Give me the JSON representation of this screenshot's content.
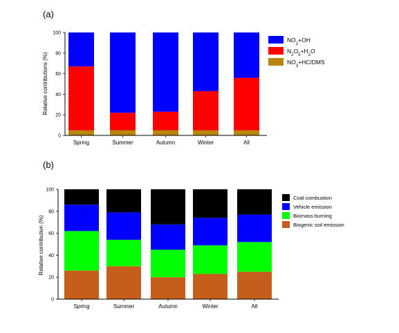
{
  "chart_data": [
    {
      "panel_label": "(a)",
      "type": "bar",
      "stacked": true,
      "categories": [
        "Spring",
        "Summer",
        "Autumn",
        "Winter",
        "All"
      ],
      "ylabel": "Relative contributions (%)",
      "xlabel": "",
      "ylim": [
        0,
        100
      ],
      "yticks": [
        0,
        20,
        40,
        60,
        80,
        100
      ],
      "legend_position": "right",
      "series": [
        {
          "name": "NO3+HC/DMS",
          "display": {
            "base": "NO",
            "sub": "3",
            "rest": "+HC/DMS"
          },
          "color": "#b8860b",
          "values": [
            5,
            5,
            5,
            5,
            5
          ]
        },
        {
          "name": "N2O5+H2O",
          "display": {
            "base": "N",
            "sub": "2",
            "base2": "O",
            "sub2": "5",
            "rest": "+H",
            "sub3": "2",
            "rest2": "O"
          },
          "color": "#ff0000",
          "values": [
            62,
            17,
            18,
            38,
            51
          ]
        },
        {
          "name": "NO2+OH",
          "display": {
            "base": "NO",
            "sub": "2",
            "rest": "+OH"
          },
          "color": "#0000ff",
          "values": [
            33,
            78,
            77,
            57,
            44
          ]
        }
      ]
    },
    {
      "panel_label": "(b)",
      "type": "bar",
      "stacked": true,
      "categories": [
        "Spring",
        "Summer",
        "Autumn",
        "Winter",
        "All"
      ],
      "ylabel": "Relative contribution (%)",
      "xlabel": "",
      "ylim": [
        0,
        100
      ],
      "yticks": [
        0,
        20,
        40,
        60,
        80,
        100
      ],
      "legend_position": "right",
      "series": [
        {
          "name": "Biogenic soil emission",
          "color": "#c45e1a",
          "values": [
            26,
            30,
            20,
            23,
            25
          ]
        },
        {
          "name": "Biomass burning",
          "color": "#00ff00",
          "values": [
            36,
            24,
            25,
            26,
            27
          ]
        },
        {
          "name": "Vehicle emission",
          "color": "#0000ff",
          "values": [
            24,
            25,
            23,
            25,
            25
          ]
        },
        {
          "name": "Coal combustion",
          "color": "#000000",
          "values": [
            14,
            21,
            32,
            26,
            23
          ]
        }
      ]
    }
  ]
}
